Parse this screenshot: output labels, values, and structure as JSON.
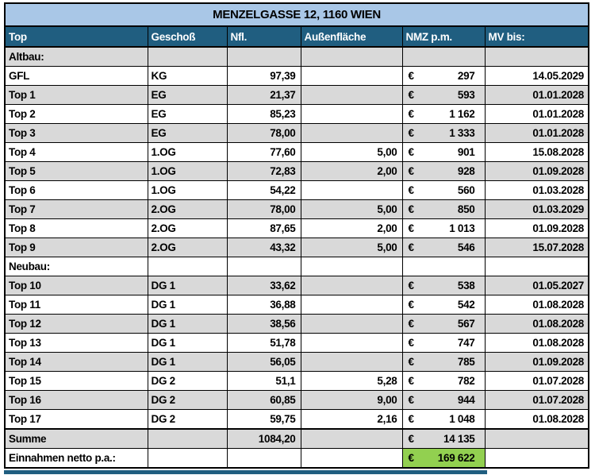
{
  "title": "MENZELGASSE 12, 1160 WIEN",
  "colors": {
    "title_bg": "#A9C7E7",
    "header_bg": "#205E80",
    "header_text": "#FFFFFF",
    "row_alt_bg": "#D9D9D9",
    "highlight_green": "#92D050",
    "border": "#000000"
  },
  "table": {
    "columns": [
      "Top",
      "Geschoß",
      "Nfl.",
      "Außenfläche",
      "NMZ p.m.",
      "MV bis:"
    ],
    "rows": [
      {
        "type": "section",
        "shaded": true,
        "cells": {
          "top": "Altbau:",
          "geschoss": "",
          "nfl": "",
          "aussen": "",
          "euro": "",
          "nmz": "",
          "mv": ""
        }
      },
      {
        "type": "data",
        "shaded": false,
        "cells": {
          "top": "GFL",
          "geschoss": "KG",
          "nfl": "97,39",
          "aussen": "",
          "euro": "€",
          "nmz": "297",
          "mv": "14.05.2029"
        }
      },
      {
        "type": "data",
        "shaded": true,
        "cells": {
          "top": "Top 1",
          "geschoss": "EG",
          "nfl": "21,37",
          "aussen": "",
          "euro": "€",
          "nmz": "593",
          "mv": "01.01.2028"
        }
      },
      {
        "type": "data",
        "shaded": false,
        "cells": {
          "top": "Top 2",
          "geschoss": "EG",
          "nfl": "85,23",
          "aussen": "",
          "euro": "€",
          "nmz": "1 162",
          "mv": "01.01.2028"
        }
      },
      {
        "type": "data",
        "shaded": true,
        "cells": {
          "top": "Top 3",
          "geschoss": "EG",
          "nfl": "78,00",
          "aussen": "",
          "euro": "€",
          "nmz": "1 333",
          "mv": "01.01.2028"
        }
      },
      {
        "type": "data",
        "shaded": false,
        "cells": {
          "top": "Top 4",
          "geschoss": "1.OG",
          "nfl": "77,60",
          "aussen": "5,00",
          "euro": "€",
          "nmz": "901",
          "mv": "15.08.2028"
        }
      },
      {
        "type": "data",
        "shaded": true,
        "cells": {
          "top": "Top 5",
          "geschoss": "1.OG",
          "nfl": "72,83",
          "aussen": "2,00",
          "euro": "€",
          "nmz": "928",
          "mv": "01.09.2028"
        }
      },
      {
        "type": "data",
        "shaded": false,
        "cells": {
          "top": "Top 6",
          "geschoss": "1.OG",
          "nfl": "54,22",
          "aussen": "",
          "euro": "€",
          "nmz": "560",
          "mv": "01.03.2028"
        }
      },
      {
        "type": "data",
        "shaded": true,
        "cells": {
          "top": "Top 7",
          "geschoss": "2.OG",
          "nfl": "78,00",
          "aussen": "5,00",
          "euro": "€",
          "nmz": "850",
          "mv": "01.03.2029"
        }
      },
      {
        "type": "data",
        "shaded": false,
        "cells": {
          "top": "Top 8",
          "geschoss": "2.OG",
          "nfl": "87,65",
          "aussen": "2,00",
          "euro": "€",
          "nmz": "1 013",
          "mv": "01.09.2028"
        }
      },
      {
        "type": "data",
        "shaded": true,
        "cells": {
          "top": "Top 9",
          "geschoss": "2.OG",
          "nfl": "43,32",
          "aussen": "5,00",
          "euro": "€",
          "nmz": "546",
          "mv": "15.07.2028"
        }
      },
      {
        "type": "section",
        "shaded": false,
        "cells": {
          "top": "Neubau:",
          "geschoss": "",
          "nfl": "",
          "aussen": "",
          "euro": "",
          "nmz": "",
          "mv": ""
        }
      },
      {
        "type": "data",
        "shaded": true,
        "cells": {
          "top": "Top 10",
          "geschoss": "DG 1",
          "nfl": "33,62",
          "aussen": "",
          "euro": "€",
          "nmz": "538",
          "mv": "01.05.2027"
        }
      },
      {
        "type": "data",
        "shaded": false,
        "cells": {
          "top": "Top 11",
          "geschoss": "DG 1",
          "nfl": "36,88",
          "aussen": "",
          "euro": "€",
          "nmz": "542",
          "mv": "01.08.2028"
        }
      },
      {
        "type": "data",
        "shaded": true,
        "cells": {
          "top": "Top 12",
          "geschoss": "DG 1",
          "nfl": "38,56",
          "aussen": "",
          "euro": "€",
          "nmz": "567",
          "mv": "01.08.2028"
        }
      },
      {
        "type": "data",
        "shaded": false,
        "cells": {
          "top": "Top 13",
          "geschoss": "DG 1",
          "nfl": "51,78",
          "aussen": "",
          "euro": "€",
          "nmz": "747",
          "mv": "01.08.2028"
        }
      },
      {
        "type": "data",
        "shaded": true,
        "cells": {
          "top": "Top 14",
          "geschoss": "DG 1",
          "nfl": "56,05",
          "aussen": "",
          "euro": "€",
          "nmz": "785",
          "mv": "01.09.2028"
        }
      },
      {
        "type": "data",
        "shaded": false,
        "cells": {
          "top": "Top 15",
          "geschoss": "DG 2",
          "nfl": "51,1",
          "aussen": "5,28",
          "euro": "€",
          "nmz": "782",
          "mv": "01.07.2028"
        }
      },
      {
        "type": "data",
        "shaded": true,
        "cells": {
          "top": "Top 16",
          "geschoss": "DG 2",
          "nfl": "60,85",
          "aussen": "9,00",
          "euro": "€",
          "nmz": "944",
          "mv": "01.07.2028"
        }
      },
      {
        "type": "data",
        "shaded": false,
        "cells": {
          "top": "Top 17",
          "geschoss": "DG 2",
          "nfl": "59,75",
          "aussen": "2,16",
          "euro": "€",
          "nmz": "1 048",
          "mv": "01.08.2028"
        }
      },
      {
        "type": "total",
        "shaded": true,
        "thick_top": true,
        "cells": {
          "top": "Summe",
          "geschoss": "",
          "nfl": "1084,20",
          "aussen": "",
          "euro": "€",
          "nmz": "14 135",
          "mv": ""
        }
      },
      {
        "type": "total",
        "shaded": false,
        "nmz_green": true,
        "cells": {
          "top": "Einnahmen netto p.a.:",
          "geschoss": "",
          "nfl": "",
          "aussen": "",
          "euro": "€",
          "nmz": "169 622",
          "mv": ""
        }
      }
    ]
  }
}
